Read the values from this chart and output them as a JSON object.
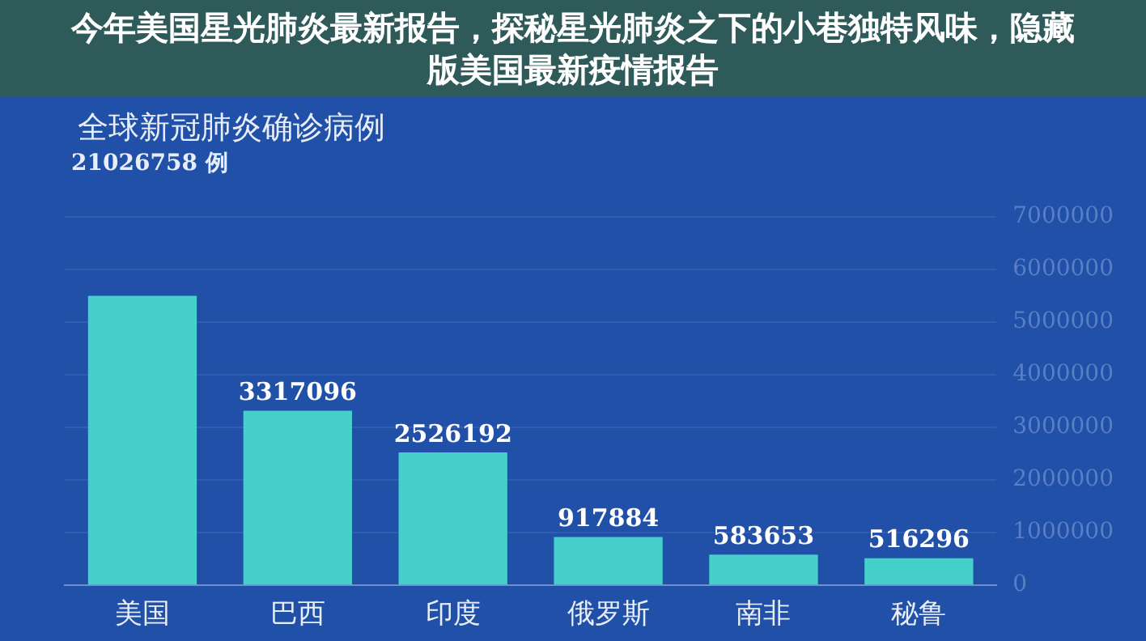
{
  "chart_data": {
    "type": "bar",
    "title": "全球新冠肺炎确诊病例",
    "subtitle": "21026758 例",
    "annotations": [
      "今年美国星光肺炎最新报告，探秘星光肺炎之下的小巷独特风味，隐藏版美国最新疫情报告"
    ],
    "categories": [
      "美国",
      "巴西",
      "印度",
      "俄罗斯",
      "南非",
      "秘鲁"
    ],
    "values": [
      5500000,
      3317096,
      2526192,
      917884,
      583653,
      516296
    ],
    "value_labels": [
      null,
      "3317096",
      "2526192",
      "917884",
      "583653",
      "516296"
    ],
    "color": "#45d0cc",
    "ylim": [
      0,
      7000000
    ],
    "yticks": [
      0,
      1000000,
      2000000,
      3000000,
      4000000,
      5000000,
      6000000,
      7000000
    ],
    "grid": "y"
  }
}
